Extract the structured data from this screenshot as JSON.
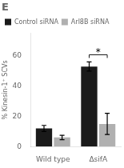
{
  "chart_data": {
    "type": "bar",
    "title": "E",
    "categories": [
      "Wild type",
      "ΔsifA"
    ],
    "series": [
      {
        "name": "Control siRNA",
        "color": "#1a1a1a",
        "values": [
          12,
          53
        ],
        "errors": [
          2,
          3
        ]
      },
      {
        "name": "Arl8B siRNA",
        "color": "#b0b0b0",
        "values": [
          6,
          15
        ],
        "errors": [
          1.5,
          7
        ]
      }
    ],
    "ylabel": "% Kinesin-1⁺ SCVs",
    "ylim": [
      0,
      75
    ],
    "yticks": [
      0,
      20,
      40,
      60
    ],
    "grid": false,
    "legend": "upper left",
    "annotations": [
      {
        "text": "*",
        "category": "ΔsifA"
      }
    ]
  }
}
